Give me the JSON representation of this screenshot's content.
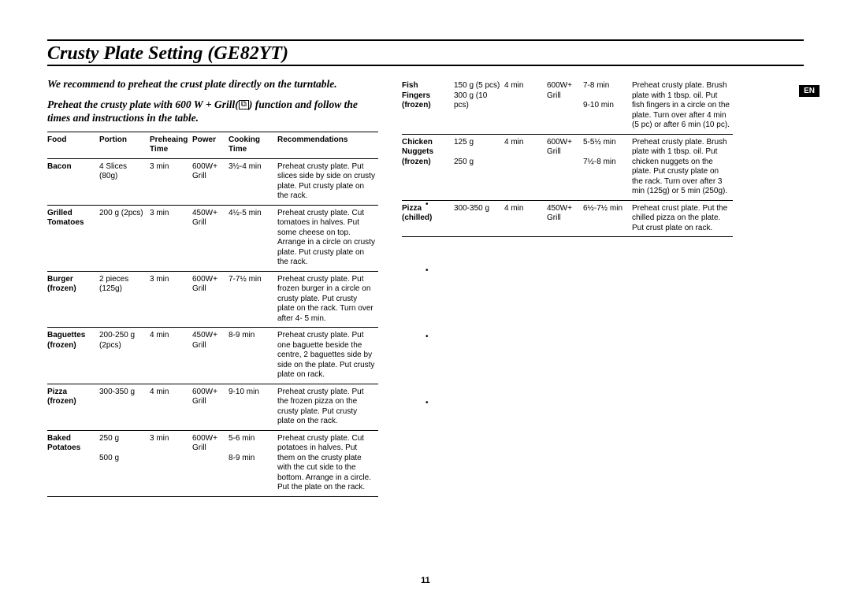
{
  "title": "Crusty Plate Setting (GE82YT)",
  "lang_badge": "EN",
  "page_number": "11",
  "intro_line1": "We recommend to preheat the crust plate directly on the turntable.",
  "intro_line2a": "Preheat the crusty plate with 600 W + Grill(",
  "intro_line2b": ") function and follow the times and instructions in the table.",
  "grill_symbol": "⬚",
  "headers": {
    "food": "Food",
    "portion": "Portion",
    "preheat_a": "Preheaing",
    "preheat_b": "Time",
    "power": "Power",
    "cook_a": "Cooking",
    "cook_b": "Time",
    "rec": "Recommendations"
  },
  "left_rows": [
    {
      "food": "Bacon",
      "portion": "4 Slices (80g)",
      "preheat": "3 min",
      "power": "600W+ Grill",
      "cook": "3½-4 min",
      "rec": "Preheat crusty plate. Put slices side by side on crusty plate. Put crusty plate on the rack."
    },
    {
      "food": "Grilled Tomatoes",
      "portion": "200 g (2pcs)",
      "preheat": "3 min",
      "power": "450W+ Grill",
      "cook": "4½-5 min",
      "rec": "Preheat crusty plate. Cut tomatoes in halves. Put some cheese on top. Arrange in a circle on crusty plate. Put crusty plate on the rack."
    },
    {
      "food": "Burger (frozen)",
      "portion": "2 pieces (125g)",
      "preheat": "3 min",
      "power": "600W+ Grill",
      "cook": "7-7½ min",
      "rec": "Preheat crusty plate. Put frozen burger in a circle on crusty plate. Put crusty plate on the rack. Turn over after 4- 5 min."
    },
    {
      "food": "Baguettes (frozen)",
      "portion": "200-250 g (2pcs)",
      "preheat": "4 min",
      "power": "450W+ Grill",
      "cook": "8-9 min",
      "rec": "Preheat crusty plate. Put one baguette beside the centre, 2 baguettes side by side on the plate. Put crusty plate on rack."
    },
    {
      "food": "Pizza (frozen)",
      "portion": "300-350 g",
      "preheat": "4 min",
      "power": "600W+ Grill",
      "cook": "9-10 min",
      "rec": "Preheat crusty plate. Put the frozen pizza on the crusty plate. Put crusty plate on the rack."
    },
    {
      "food": "Baked Potatoes",
      "portion": "250 g\n\n500 g",
      "preheat": "3 min",
      "power": "600W+ Grill",
      "cook": "5-6 min\n\n8-9 min",
      "rec": "Preheat crusty plate. Cut potatoes in halves. Put them on the crusty plate with the cut side to the bottom. Arrange in a circle. Put the plate on the rack."
    }
  ],
  "right_rows": [
    {
      "food": "Fish Fingers (frozen)",
      "portion": "150 g (5 pcs)\n300 g (10 pcs)",
      "preheat": "4 min",
      "power": "600W+ Grill",
      "cook": "7-8 min\n\n9-10 min",
      "rec": "Preheat crusty plate. Brush plate with 1 tbsp. oil. Put fish fingers in a circle on the plate. Turn over after 4 min (5 pc) or after 6 min (10 pc)."
    },
    {
      "food": "Chicken Nuggets (frozen)",
      "portion": "125 g\n\n250 g",
      "preheat": "4 min",
      "power": "600W+ Grill",
      "cook": "5-5½ min\n\n7½-8 min",
      "rec": "Preheat crusty plate. Brush plate with 1 tbsp. oil. Put chicken nuggets on the plate. Put crusty plate on the rack. Turn over after 3 min (125g) or 5 min (250g)."
    },
    {
      "food": "Pizza (chilled)",
      "portion": "300-350 g",
      "preheat": "4 min",
      "power": "450W+ Grill",
      "cook": "6½-7½ min",
      "rec": "Preheat crust plate. Put the chilled pizza on the plate.\nPut crust plate on rack."
    }
  ]
}
